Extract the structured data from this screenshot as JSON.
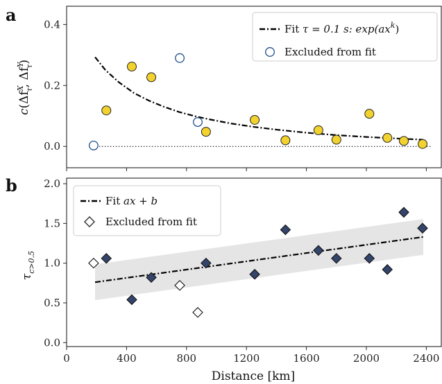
{
  "chart_data": [
    {
      "panel": "a",
      "type": "scatter",
      "ylabel": "c(Δf_τ^X, Δf_τ^Y)",
      "ylim": [
        -0.07,
        0.46
      ],
      "xlim": [
        0,
        2500
      ],
      "yticks": [
        "0.0",
        "0.2",
        "0.4"
      ],
      "ytick_values": [
        0.0,
        0.2,
        0.4
      ],
      "reference_line_y": 0.0,
      "series": [
        {
          "name": "Included in fit",
          "marker": "circle-filled",
          "color": "#f2d22e",
          "x": [
            265,
            435,
            565,
            930,
            1255,
            1460,
            1680,
            1800,
            2020,
            2140,
            2250,
            2375
          ],
          "y": [
            0.118,
            0.262,
            0.227,
            0.048,
            0.087,
            0.02,
            0.053,
            0.022,
            0.107,
            0.028,
            0.018,
            0.008
          ]
        },
        {
          "name": "Excluded from fit",
          "marker": "circle-open",
          "color": "#1f4e8c",
          "x": [
            180,
            755,
            875
          ],
          "y": [
            0.003,
            0.29,
            0.08
          ]
        },
        {
          "name": "Fit τ = 0.1 s: exp(ax^k)",
          "type": "line",
          "style": "dash-dot",
          "color": "#000000",
          "x": [
            190,
            260,
            350,
            450,
            550,
            650,
            750,
            850,
            950,
            1100,
            1250,
            1400,
            1600,
            1800,
            2000,
            2200,
            2380
          ],
          "y": [
            0.293,
            0.25,
            0.21,
            0.175,
            0.15,
            0.13,
            0.113,
            0.1,
            0.089,
            0.075,
            0.064,
            0.055,
            0.045,
            0.037,
            0.031,
            0.026,
            0.022
          ]
        }
      ],
      "legend": {
        "position": "top-right",
        "fit_prefix": "Fit ",
        "fit_math": "τ = 0.1 s: exp(ax",
        "fit_sup": "k",
        "fit_suffix": ")",
        "excluded": "Excluded from fit"
      }
    },
    {
      "panel": "b",
      "type": "scatter",
      "xlabel": "Distance [km]",
      "ylabel": "τ_{c>0.5}",
      "xlim": [
        0,
        2500
      ],
      "ylim": [
        -0.05,
        2.07
      ],
      "xticks": [
        "0",
        "400",
        "800",
        "1200",
        "1600",
        "2000",
        "2400"
      ],
      "xtick_values": [
        0,
        400,
        800,
        1200,
        1600,
        2000,
        2400
      ],
      "yticks": [
        "0.0",
        "0.5",
        "1.0",
        "1.5",
        "2.0"
      ],
      "ytick_values": [
        0.0,
        0.5,
        1.0,
        1.5,
        2.0
      ],
      "series": [
        {
          "name": "Included in fit",
          "marker": "diamond-filled",
          "color": "#34446a",
          "x": [
            265,
            435,
            565,
            930,
            1255,
            1460,
            1680,
            1800,
            2020,
            2140,
            2250,
            2375
          ],
          "y": [
            1.06,
            0.54,
            0.82,
            1.0,
            0.86,
            1.42,
            1.16,
            1.06,
            1.06,
            0.92,
            1.64,
            1.44
          ]
        },
        {
          "name": "Excluded from fit",
          "marker": "diamond-open",
          "color": "#ffffff",
          "x": [
            180,
            755,
            875
          ],
          "y": [
            1.0,
            0.72,
            0.38
          ]
        },
        {
          "name": "Fit ax + b",
          "type": "line",
          "style": "dash-dot",
          "color": "#000000",
          "x": [
            190,
            2380
          ],
          "y": [
            0.76,
            1.33
          ]
        },
        {
          "name": "confidence band",
          "type": "area",
          "color": "#e5e5e5",
          "x": [
            190,
            2380
          ],
          "lower": [
            0.535,
            1.105
          ],
          "upper": [
            0.985,
            1.555
          ]
        }
      ],
      "legend": {
        "position": "top-left",
        "fit_prefix": "Fit ",
        "fit_math": "ax + b",
        "excluded": "Excluded from fit"
      }
    }
  ],
  "labels": {
    "panel_a": "a",
    "panel_b": "b",
    "ylabel_a_c": "c",
    "ylabel_a_inner": "(Δf",
    "ylabel_a_X": "X",
    "ylabel_a_mid": ", Δf",
    "ylabel_a_Y": "Y",
    "ylabel_a_tau": "τ",
    "ylabel_a_end": ")",
    "ylabel_b_tau": "τ",
    "ylabel_b_sub": "c>0.5",
    "xlabel": "Distance [km]"
  }
}
